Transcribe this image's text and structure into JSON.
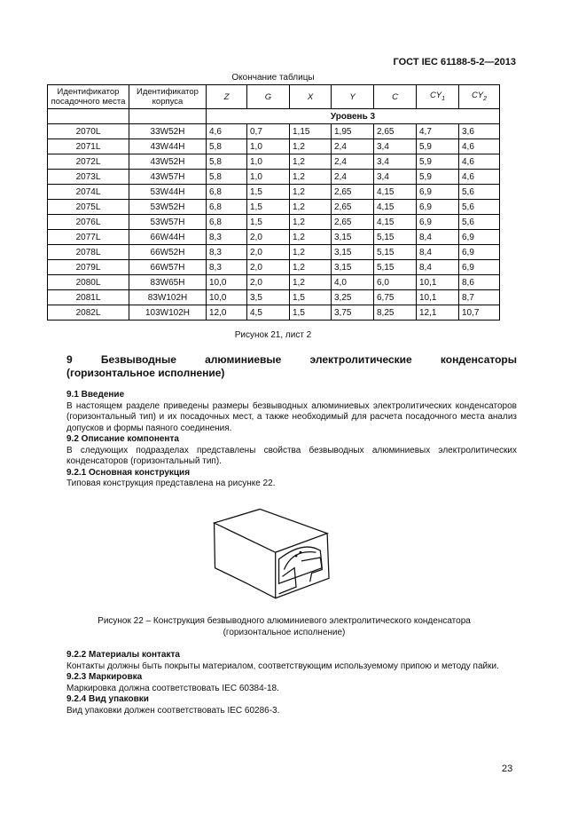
{
  "header": {
    "doc_code": "ГОСТ IEC 61188-5-2—2013"
  },
  "table": {
    "caption": "Окончание таблицы",
    "columns": [
      "Идентификатор посадочного места",
      "Идентификатор корпуса",
      "Z",
      "G",
      "X",
      "Y",
      "C",
      "CY1",
      "CY2"
    ],
    "level": "Уровень 3",
    "rows": [
      [
        "2070L",
        "33W52H",
        "4,6",
        "0,7",
        "1,15",
        "1,95",
        "2,65",
        "4,7",
        "3,6"
      ],
      [
        "2071L",
        "43W44H",
        "5,8",
        "1,0",
        "1,2",
        "2,4",
        "3,4",
        "5,9",
        "4,6"
      ],
      [
        "2072L",
        "43W52H",
        "5,8",
        "1,0",
        "1,2",
        "2,4",
        "3,4",
        "5,9",
        "4,6"
      ],
      [
        "2073L",
        "43W57H",
        "5,8",
        "1,0",
        "1,2",
        "2,4",
        "3,4",
        "5,9",
        "4,6"
      ],
      [
        "2074L",
        "53W44H",
        "6,8",
        "1,5",
        "1,2",
        "2,65",
        "4,15",
        "6,9",
        "5,6"
      ],
      [
        "2075L",
        "53W52H",
        "6,8",
        "1,5",
        "1,2",
        "2,65",
        "4,15",
        "6,9",
        "5,6"
      ],
      [
        "2076L",
        "53W57H",
        "6,8",
        "1,5",
        "1,2",
        "2,65",
        "4,15",
        "6,9",
        "5,6"
      ],
      [
        "2077L",
        "66W44H",
        "8,3",
        "2,0",
        "1,2",
        "3,15",
        "5,15",
        "8,4",
        "6,9"
      ],
      [
        "2078L",
        "66W52H",
        "8,3",
        "2,0",
        "1,2",
        "3,15",
        "5,15",
        "8,4",
        "6,9"
      ],
      [
        "2079L",
        "66W57H",
        "8,3",
        "2,0",
        "1,2",
        "3,15",
        "5,15",
        "8,4",
        "6,9"
      ],
      [
        "2080L",
        "83W65H",
        "10,0",
        "2,0",
        "1,2",
        "4,0",
        "6,0",
        "10,1",
        "8,6"
      ],
      [
        "2081L",
        "83W102H",
        "10,0",
        "3,5",
        "1,5",
        "3,25",
        "6,75",
        "10,1",
        "8,7"
      ],
      [
        "2082L",
        "103W102H",
        "12,0",
        "4,5",
        "1,5",
        "3,75",
        "8,25",
        "12,1",
        "10,7"
      ]
    ]
  },
  "fig21_caption": "Рисунок 21, лист 2",
  "section9": {
    "title_line1": "9 Безвыводные алюминиевые электролитические конденсаторы",
    "title_line2": "(горизонтальное исполнение)",
    "s91_title": "9.1 Введение",
    "s91_text": "В настоящем разделе приведены размеры безвыводных алюминиевых электролитических конденсаторов (горизонтальный тип) и их посадочных мест, а также необходимый для расчета посадочного места анализ допусков и формы паяного соединения.",
    "s92_title": "9.2 Описание компонента",
    "s92_text": "В следующих подразделах представлены свойства безвыводных алюминиевых электролитических конденсаторов (горизонтальный тип).",
    "s921_title": "9.2.1 Основная конструкция",
    "s921_text": "Типовая конструкция представлена на рисунке 22.",
    "fig22_caption_line1": "Рисунок 22 – Конструкция безвыводного алюминиевого электролитического конденсатора",
    "fig22_caption_line2": "(горизонтальное исполнение)",
    "s922_title": "9.2.2 Материалы контакта",
    "s922_text": "Контакты должны быть покрыты материалом, соответствующим используемому припою и методу пайки.",
    "s923_title": "9.2.3 Маркировка",
    "s923_text": "Маркировка должна соответствовать IEC 60384-18.",
    "s924_title": "9.2.4 Вид упаковки",
    "s924_text": "Вид упаковки должен соответствовать IEC 60286-3."
  },
  "page_number": "23"
}
